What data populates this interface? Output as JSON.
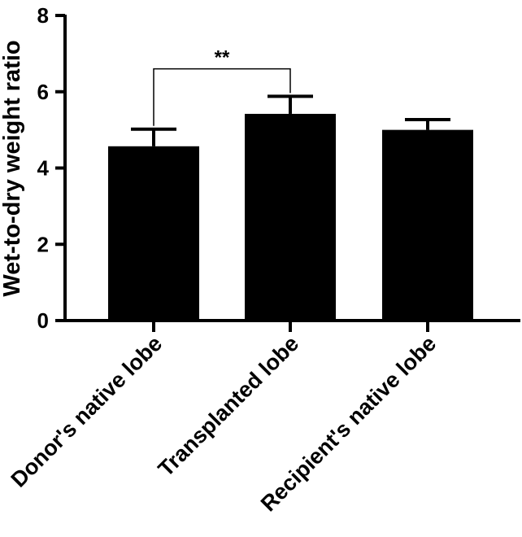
{
  "chart_data": {
    "type": "bar",
    "categories": [
      "Donor's native lobe",
      "Transplanted lobe",
      "Recipient's native lobe"
    ],
    "values": [
      4.57,
      5.42,
      5.0
    ],
    "error_upper": [
      5.02,
      5.88,
      5.27
    ],
    "ylabel": "Wet-to-dry weight ratio",
    "ylim": [
      0,
      8
    ],
    "yticks": [
      "0",
      "2",
      "4",
      "6",
      "8"
    ],
    "bar_color": "#000000",
    "grid": false,
    "significance": {
      "label": "**",
      "from_category": 0,
      "to_category": 1,
      "level": 6.6
    }
  }
}
